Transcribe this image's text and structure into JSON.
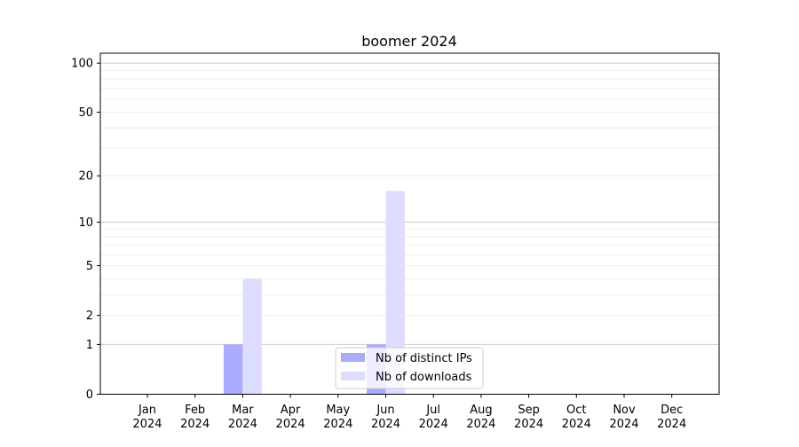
{
  "chart_data": {
    "type": "bar",
    "title": "boomer 2024",
    "xlabel": "",
    "ylabel": "",
    "y_scale": "log(1+y)",
    "ylim": [
      0,
      115
    ],
    "yticks": [
      0,
      1,
      2,
      5,
      10,
      20,
      50,
      100
    ],
    "grid": true,
    "legend_placement": "lower-center",
    "categories": [
      [
        "Jan",
        "2024"
      ],
      [
        "Feb",
        "2024"
      ],
      [
        "Mar",
        "2024"
      ],
      [
        "Apr",
        "2024"
      ],
      [
        "May",
        "2024"
      ],
      [
        "Jun",
        "2024"
      ],
      [
        "Jul",
        "2024"
      ],
      [
        "Aug",
        "2024"
      ],
      [
        "Sep",
        "2024"
      ],
      [
        "Oct",
        "2024"
      ],
      [
        "Nov",
        "2024"
      ],
      [
        "Dec",
        "2024"
      ]
    ],
    "series": [
      {
        "name": "Nb of distinct IPs",
        "color": "#aaaaff",
        "values": [
          0,
          0,
          1,
          0,
          0,
          1,
          0,
          0,
          0,
          0,
          0,
          0
        ]
      },
      {
        "name": "Nb of downloads",
        "color": "#ddddff",
        "values": [
          0,
          0,
          4,
          0,
          0,
          16,
          0,
          0,
          0,
          0,
          0,
          0
        ]
      }
    ]
  }
}
